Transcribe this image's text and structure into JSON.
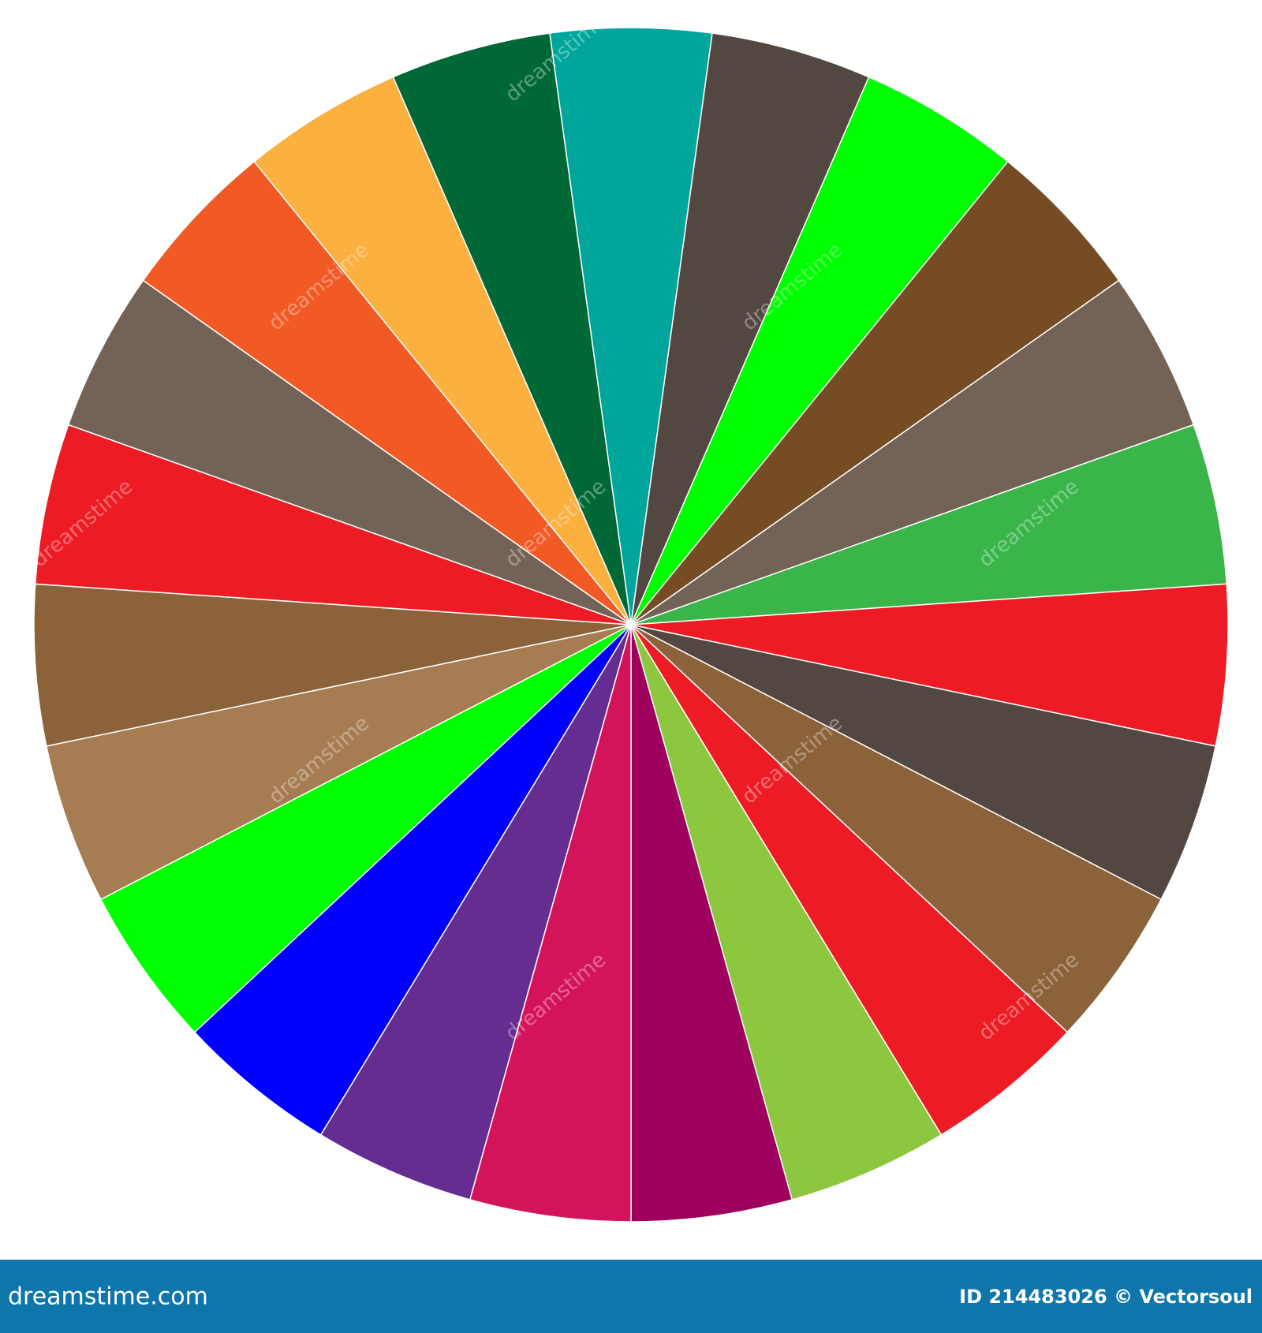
{
  "chart_data": {
    "type": "pie",
    "categories": [
      null,
      null,
      null,
      null,
      null,
      null,
      null,
      null,
      null,
      null,
      null,
      null,
      null,
      null,
      null,
      null,
      null,
      null,
      null,
      null,
      null,
      null,
      null
    ],
    "values": [
      1,
      1,
      1,
      1,
      1,
      1,
      1,
      1,
      1,
      1,
      1,
      1,
      1,
      1,
      1,
      1,
      1,
      1,
      1,
      1,
      1,
      1,
      1
    ],
    "colors": [
      "#00a69c",
      "#534741",
      "#00ff00",
      "#754c24",
      "#736357",
      "#39b54a",
      "#ed1c24",
      "#534741",
      "#8b6239",
      "#ed1c24",
      "#8dc63f",
      "#9e005d",
      "#d4145a",
      "#662d91",
      "#0000ff",
      "#00ff00",
      "#a67c52",
      "#8b6239",
      "#ed1c24",
      "#736357",
      "#f15a24",
      "#fbb040",
      "#006837"
    ]
  },
  "watermark": "dreamstime",
  "footer": {
    "site": "dreamstime.com",
    "credit": "ID 214483026 © Vectorsoul"
  }
}
